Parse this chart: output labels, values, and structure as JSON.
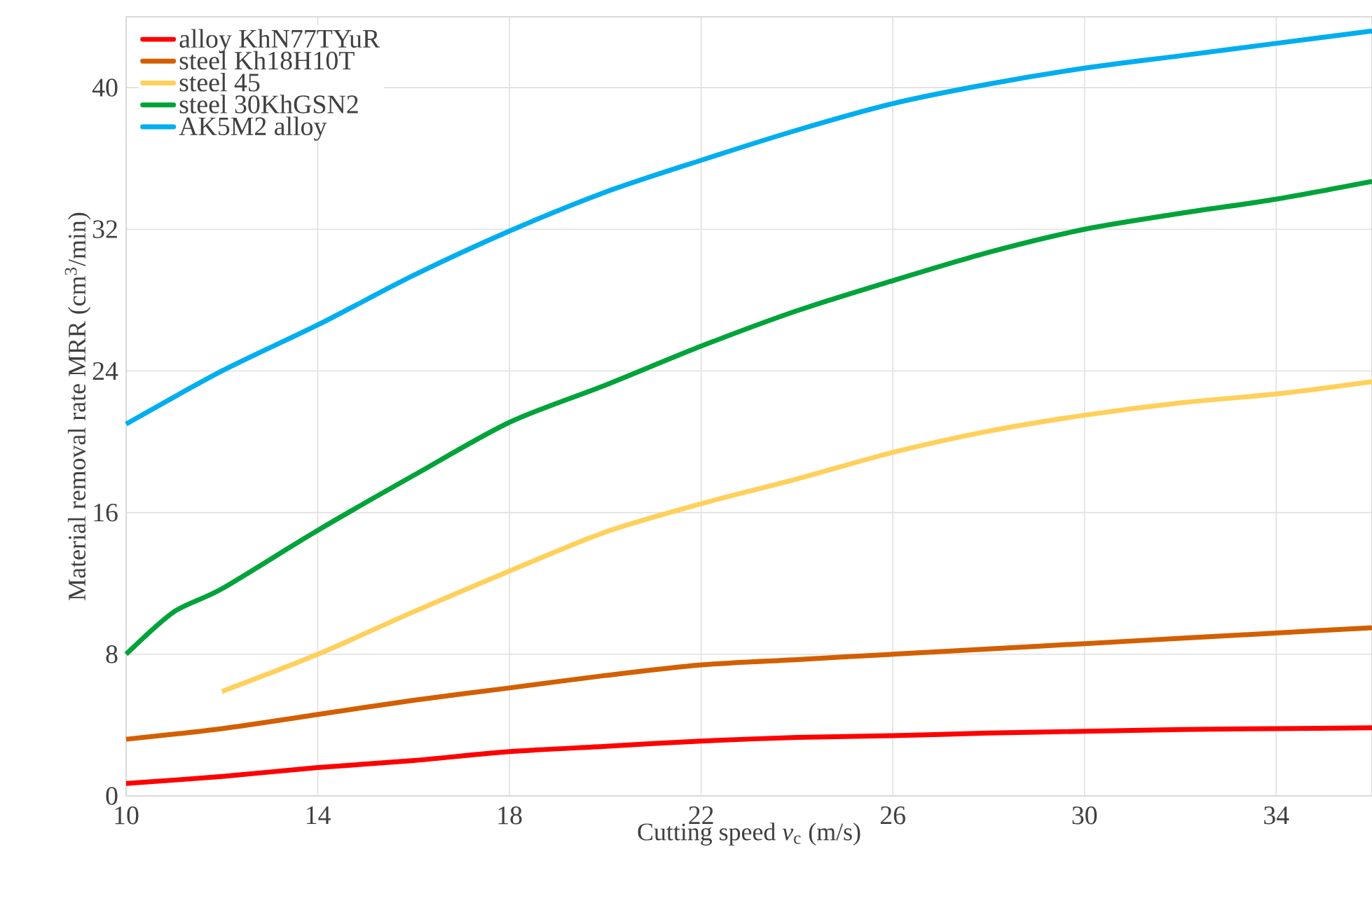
{
  "chart_data": {
    "type": "line",
    "xlabel": "Cutting speed *v*$_{c}$ (m/s)",
    "ylabel": "Material removal rate MRR (cm$^{3}$/min)",
    "x": [
      10,
      12,
      14,
      16,
      18,
      20,
      22,
      24,
      26,
      28,
      30,
      32,
      34,
      36
    ],
    "series": [
      {
        "name": "alloy KhN77TYuR",
        "color": "#ff0000",
        "values": [
          0.7,
          1.1,
          1.6,
          2.0,
          2.5,
          2.8,
          3.1,
          3.3,
          3.4,
          3.55,
          3.65,
          3.75,
          3.8,
          3.85
        ]
      },
      {
        "name": "steel Kh18H10T",
        "color": "#d35f00",
        "values": [
          3.2,
          3.8,
          4.6,
          5.4,
          6.1,
          6.8,
          7.4,
          7.7,
          8.0,
          8.3,
          8.6,
          8.9,
          9.2,
          9.5
        ]
      },
      {
        "name": "steel 45",
        "color": "#ffd05c",
        "x": [
          12,
          14,
          16,
          18,
          20,
          22,
          24,
          26,
          28,
          30,
          32,
          34,
          36
        ],
        "values": [
          5.9,
          8.0,
          10.4,
          12.7,
          14.9,
          16.5,
          17.9,
          19.4,
          20.6,
          21.5,
          22.2,
          22.7,
          23.4
        ]
      },
      {
        "name": "steel 30KhGSN2",
        "color": "#00a33a",
        "x": [
          10,
          11,
          12,
          14,
          16,
          18,
          20,
          22,
          24,
          26,
          28,
          30,
          32,
          34,
          36
        ],
        "values": [
          8.0,
          10.4,
          11.7,
          15.0,
          18.1,
          21.1,
          23.2,
          25.4,
          27.4,
          29.1,
          30.7,
          32.0,
          32.9,
          33.7,
          34.7
        ]
      },
      {
        "name": "AK5M2 alloy",
        "color": "#00aeef",
        "values": [
          21.0,
          24.0,
          26.6,
          29.4,
          31.9,
          34.1,
          35.9,
          37.6,
          39.1,
          40.2,
          41.1,
          41.8,
          42.5,
          43.2
        ]
      }
    ],
    "xlim": [
      10,
      36
    ],
    "xticks": [
      10,
      14,
      18,
      22,
      26,
      30,
      34
    ],
    "ylim": [
      0,
      44
    ],
    "yticks": [
      0,
      8,
      16,
      24,
      32,
      40
    ],
    "grid": true,
    "legend": "top left",
    "marker": "none",
    "line_style": "solid"
  }
}
